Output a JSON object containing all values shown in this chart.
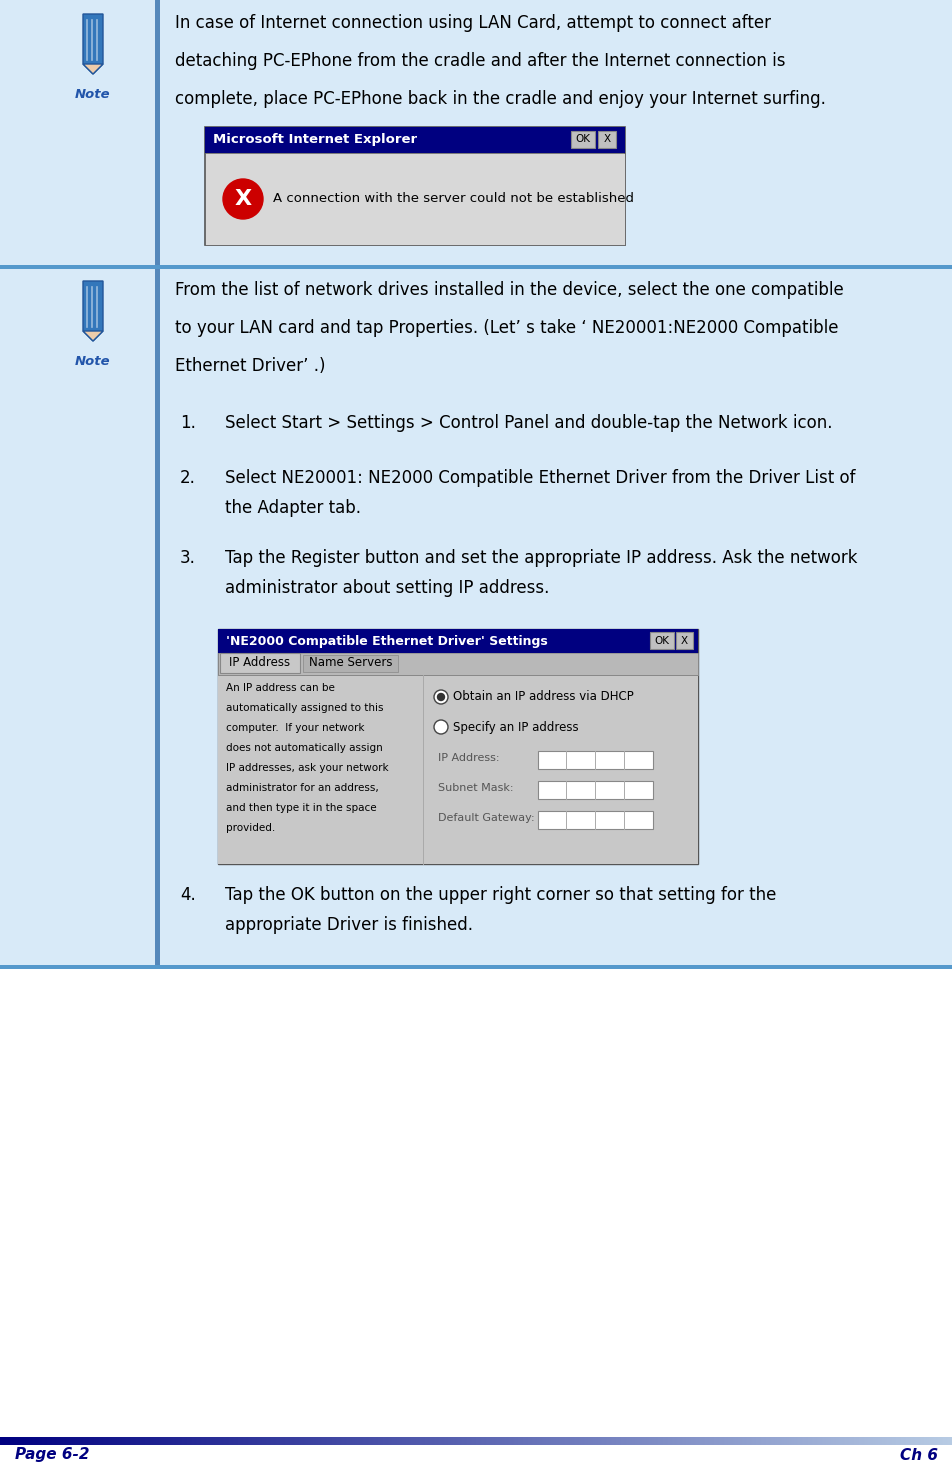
{
  "page_label_left": "Page 6-2",
  "page_label_right": "Ch 6",
  "bg_color": "#ffffff",
  "light_blue_bg": "#d8eaf8",
  "section_bar_color": "#6699cc",
  "note1_text_line1": "In case of Internet connection using LAN Card, attempt to connect after",
  "note1_text_line2": "detaching PC-EPhone from the cradle and after the Internet connection is",
  "note1_text_line3": "complete, place PC-EPhone back in the cradle and enjoy your Internet surfing.",
  "note2_text_line1": "From the list of network drives installed in the device, select the one compatible",
  "note2_text_line2": "to your LAN card and tap Properties. (Let’ s take ‘ NE20001:NE2000 Compatible",
  "note2_text_line3": "Ethernet Driver’ .)",
  "ie_dialog_title": "Microsoft Internet Explorer",
  "ie_dialog_msg": "A connection with the server could not be established",
  "ie_ok_label": "OK",
  "step1": "Select Start > Settings > Control Panel and double-tap the Network icon.",
  "step2_line1": "Select NE20001: NE2000 Compatible Ethernet Driver from the Driver List of",
  "step2_line2": "the Adapter tab.",
  "step3_line1": "Tap the Register button and set the appropriate IP address. Ask the network",
  "step3_line2": "administrator about setting IP address.",
  "step4_line1": "Tap the OK button on the upper right corner so that setting for the",
  "step4_line2": "appropriate Driver is finished.",
  "ne2000_title": "'NE2000 Compatible Ethernet Driver' Settings",
  "ne2000_tab1": "IP Address",
  "ne2000_tab2": "Name Servers",
  "ne2000_ok": "OK",
  "ne2000_body_line1": "An IP address can be",
  "ne2000_body_line2": "automatically assigned to this",
  "ne2000_body_line3": "computer.  If your network",
  "ne2000_body_line4": "does not automatically assign",
  "ne2000_body_line5": "IP addresses, ask your network",
  "ne2000_body_line6": "administrator for an address,",
  "ne2000_body_line7": "and then type it in the space",
  "ne2000_body_line8": "provided.",
  "ne2000_radio1": "Obtain an IP address via DHCP",
  "ne2000_radio2": "Specify an IP address",
  "ne2000_label1": "IP Address:",
  "ne2000_label2": "Subnet Mask:",
  "ne2000_label3": "Default Gateway:",
  "title_bar_color": "#000080",
  "dialog_bg": "#c8c8c8",
  "dialog_body_bg": "#d0d0d0",
  "ne_dialog_bg": "#c8c8c8",
  "ne_body_bg": "#c8d8e8",
  "footer_gradient_left": "#000080",
  "footer_gradient_right": "#b8cce4"
}
